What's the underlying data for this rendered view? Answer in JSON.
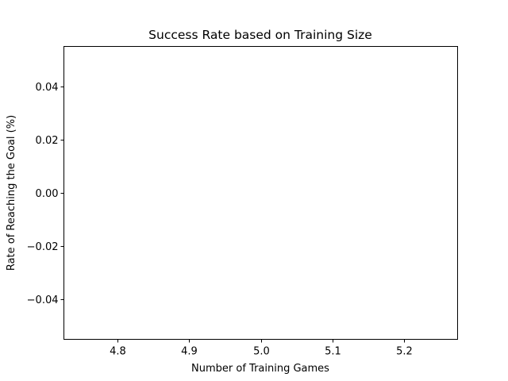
{
  "chart_data": {
    "type": "line",
    "title": "Success Rate based on Training Size",
    "xlabel": "Number of Training Games",
    "ylabel": "Rate of Reaching the Goal (%)",
    "x": [],
    "series": [],
    "xlim": [
      4.725,
      5.275
    ],
    "ylim": [
      -0.055,
      0.055
    ],
    "xticks": [
      4.8,
      4.9,
      5.0,
      5.1,
      5.2
    ],
    "xtick_labels": [
      "4.8",
      "4.9",
      "5.0",
      "5.1",
      "5.2"
    ],
    "yticks": [
      -0.04,
      -0.02,
      0.0,
      0.02,
      0.04
    ],
    "ytick_labels": [
      "−0.04",
      "−0.02",
      "0.00",
      "0.02",
      "0.04"
    ],
    "grid": false,
    "legend": "none",
    "colors": {
      "axes": "#000000",
      "background": "#ffffff"
    }
  }
}
